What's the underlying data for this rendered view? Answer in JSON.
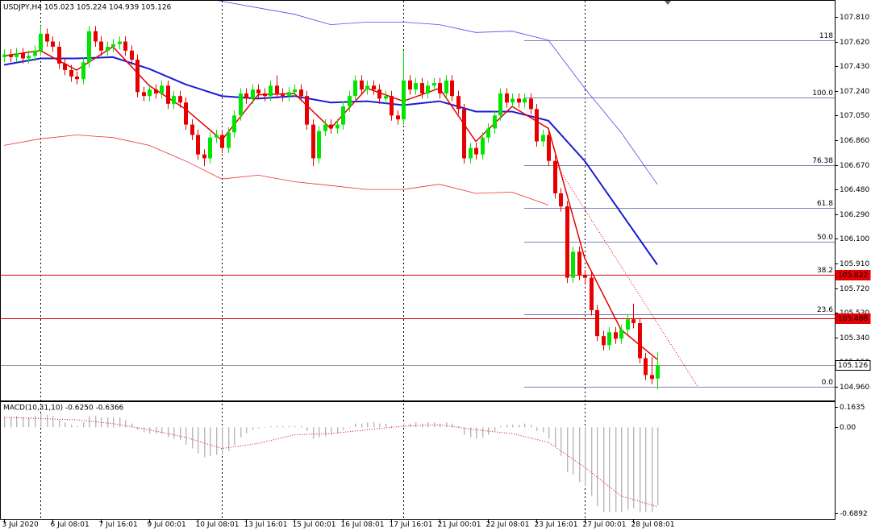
{
  "chart_data": {
    "type": "candlestick",
    "title": "USDJPY,H4  105.023 105.224 104.939 105.126",
    "up_color": "#00e600",
    "down_color": "#e60000",
    "candles": [
      [
        107.5,
        107.56,
        107.46,
        107.52
      ],
      [
        107.52,
        107.56,
        107.46,
        107.5
      ],
      [
        107.5,
        107.57,
        107.46,
        107.53
      ],
      [
        107.53,
        107.57,
        107.45,
        107.49
      ],
      [
        107.49,
        107.55,
        107.45,
        107.51
      ],
      [
        107.51,
        107.59,
        107.47,
        107.55
      ],
      [
        107.55,
        107.74,
        107.51,
        107.68
      ],
      [
        107.68,
        107.72,
        107.58,
        107.62
      ],
      [
        107.62,
        107.66,
        107.54,
        107.58
      ],
      [
        107.58,
        107.62,
        107.41,
        107.45
      ],
      [
        107.45,
        107.49,
        107.36,
        107.4
      ],
      [
        107.4,
        107.44,
        107.31,
        107.35
      ],
      [
        107.35,
        107.39,
        107.29,
        107.33
      ],
      [
        107.33,
        107.5,
        107.29,
        107.46
      ],
      [
        107.46,
        107.74,
        107.42,
        107.7
      ],
      [
        107.7,
        107.74,
        107.58,
        107.62
      ],
      [
        107.62,
        107.66,
        107.51,
        107.55
      ],
      [
        107.55,
        107.62,
        107.51,
        107.58
      ],
      [
        107.58,
        107.64,
        107.54,
        107.6
      ],
      [
        107.6,
        107.66,
        107.56,
        107.62
      ],
      [
        107.62,
        107.66,
        107.51,
        107.55
      ],
      [
        107.55,
        107.59,
        107.44,
        107.48
      ],
      [
        107.48,
        107.52,
        107.19,
        107.23
      ],
      [
        107.23,
        107.27,
        107.16,
        107.2
      ],
      [
        107.2,
        107.29,
        107.16,
        107.25
      ],
      [
        107.25,
        107.29,
        107.18,
        107.22
      ],
      [
        107.22,
        107.32,
        107.18,
        107.28
      ],
      [
        107.28,
        107.32,
        107.1,
        107.14
      ],
      [
        107.14,
        107.24,
        107.1,
        107.2
      ],
      [
        107.2,
        107.24,
        107.11,
        107.15
      ],
      [
        107.15,
        107.19,
        106.94,
        106.98
      ],
      [
        106.98,
        107.02,
        106.86,
        106.9
      ],
      [
        106.9,
        106.94,
        106.71,
        106.75
      ],
      [
        106.75,
        106.79,
        106.66,
        106.72
      ],
      [
        106.72,
        106.92,
        106.68,
        106.88
      ],
      [
        106.88,
        106.94,
        106.84,
        106.9
      ],
      [
        106.9,
        106.94,
        106.76,
        106.8
      ],
      [
        106.8,
        106.96,
        106.76,
        106.92
      ],
      [
        106.92,
        107.09,
        106.88,
        107.05
      ],
      [
        107.05,
        107.26,
        107.01,
        107.22
      ],
      [
        107.22,
        107.26,
        107.14,
        107.18
      ],
      [
        107.18,
        107.29,
        107.14,
        107.25
      ],
      [
        107.25,
        107.29,
        107.18,
        107.22
      ],
      [
        107.22,
        107.26,
        107.16,
        107.2
      ],
      [
        107.2,
        107.32,
        107.16,
        107.28
      ],
      [
        107.28,
        107.36,
        107.18,
        107.22
      ],
      [
        107.22,
        107.26,
        107.16,
        107.2
      ],
      [
        107.2,
        107.27,
        107.16,
        107.23
      ],
      [
        107.23,
        107.29,
        107.19,
        107.25
      ],
      [
        107.25,
        107.29,
        107.16,
        107.2
      ],
      [
        107.2,
        107.24,
        106.94,
        106.98
      ],
      [
        106.98,
        107.02,
        106.66,
        106.72
      ],
      [
        106.72,
        106.97,
        106.68,
        106.93
      ],
      [
        106.93,
        107.02,
        106.89,
        106.98
      ],
      [
        106.98,
        107.02,
        106.91,
        106.95
      ],
      [
        106.95,
        107.02,
        106.91,
        106.98
      ],
      [
        106.98,
        107.16,
        106.94,
        107.12
      ],
      [
        107.12,
        107.24,
        107.08,
        107.2
      ],
      [
        107.2,
        107.36,
        107.16,
        107.32
      ],
      [
        107.32,
        107.36,
        107.21,
        107.25
      ],
      [
        107.25,
        107.32,
        107.21,
        107.28
      ],
      [
        107.28,
        107.32,
        107.21,
        107.25
      ],
      [
        107.25,
        107.29,
        107.14,
        107.18
      ],
      [
        107.18,
        107.24,
        107.14,
        107.2
      ],
      [
        107.2,
        107.24,
        107.01,
        107.05
      ],
      [
        107.05,
        107.09,
        106.98,
        107.02
      ],
      [
        107.02,
        107.55,
        106.98,
        107.32
      ],
      [
        107.32,
        107.36,
        107.21,
        107.25
      ],
      [
        107.25,
        107.34,
        107.21,
        107.3
      ],
      [
        107.3,
        107.34,
        107.18,
        107.22
      ],
      [
        107.22,
        107.32,
        107.18,
        107.28
      ],
      [
        107.28,
        107.34,
        107.24,
        107.3
      ],
      [
        107.3,
        107.34,
        107.18,
        107.22
      ],
      [
        107.22,
        107.36,
        107.18,
        107.32
      ],
      [
        107.32,
        107.36,
        107.16,
        107.2
      ],
      [
        107.2,
        107.24,
        107.06,
        107.1
      ],
      [
        107.1,
        107.14,
        106.68,
        106.72
      ],
      [
        106.72,
        106.84,
        106.68,
        106.8
      ],
      [
        106.8,
        106.84,
        106.71,
        106.75
      ],
      [
        106.75,
        106.92,
        106.71,
        106.88
      ],
      [
        106.88,
        106.99,
        106.84,
        106.95
      ],
      [
        106.95,
        107.09,
        106.91,
        107.05
      ],
      [
        107.05,
        107.26,
        107.01,
        107.22
      ],
      [
        107.22,
        107.26,
        107.11,
        107.15
      ],
      [
        107.15,
        107.22,
        107.11,
        107.18
      ],
      [
        107.18,
        107.22,
        107.11,
        107.15
      ],
      [
        107.15,
        107.22,
        107.11,
        107.18
      ],
      [
        107.18,
        107.22,
        107.06,
        107.1
      ],
      [
        107.1,
        107.14,
        106.81,
        106.85
      ],
      [
        106.85,
        106.94,
        106.81,
        106.9
      ],
      [
        106.9,
        106.94,
        106.66,
        106.7
      ],
      [
        106.7,
        106.74,
        106.41,
        106.45
      ],
      [
        106.45,
        106.49,
        106.31,
        106.35
      ],
      [
        106.35,
        106.39,
        105.76,
        105.8
      ],
      [
        105.8,
        106.04,
        105.76,
        106.0
      ],
      [
        106.0,
        106.04,
        105.78,
        105.82
      ],
      [
        105.82,
        105.86,
        105.76,
        105.8
      ],
      [
        105.8,
        105.84,
        105.51,
        105.55
      ],
      [
        105.55,
        105.59,
        105.31,
        105.35
      ],
      [
        105.35,
        105.39,
        105.24,
        105.28
      ],
      [
        105.28,
        105.42,
        105.24,
        105.38
      ],
      [
        105.38,
        105.42,
        105.29,
        105.33
      ],
      [
        105.33,
        105.44,
        105.29,
        105.4
      ],
      [
        105.4,
        105.52,
        105.36,
        105.48
      ],
      [
        105.48,
        105.6,
        105.41,
        105.45
      ],
      [
        105.45,
        105.49,
        105.14,
        105.18
      ],
      [
        105.18,
        105.22,
        105.01,
        105.05
      ],
      [
        105.05,
        105.19,
        104.98,
        105.02
      ],
      [
        105.023,
        105.224,
        104.939,
        105.126
      ]
    ],
    "xlim": [
      -0.67,
      137.33
    ],
    "xticks": [
      {
        "value": 0,
        "label": "3 Jul 2020"
      },
      {
        "value": 8,
        "label": "6 Jul 08:01"
      },
      {
        "value": 16,
        "label": "7 Jul 16:01"
      },
      {
        "value": 24,
        "label": "9 Jul 00:01"
      },
      {
        "value": 32,
        "label": "10 Jul 08:01"
      },
      {
        "value": 40,
        "label": "13 Jul 16:01"
      },
      {
        "value": 48,
        "label": "15 Jul 00:01"
      },
      {
        "value": 56,
        "label": "16 Jul 08:01"
      },
      {
        "value": 64,
        "label": "17 Jul 16:01"
      },
      {
        "value": 72,
        "label": "21 Jul 00:01"
      },
      {
        "value": 80,
        "label": "22 Jul 08:01"
      },
      {
        "value": 88,
        "label": "23 Jul 16:01"
      },
      {
        "value": 96,
        "label": "27 Jul 00:01"
      },
      {
        "value": 104,
        "label": "28 Jul 08:01"
      }
    ],
    "ylim": [
      104.854,
      107.94
    ],
    "yticks": [
      {
        "value": 107.81,
        "label": "107.810"
      },
      {
        "value": 107.62,
        "label": "107.620"
      },
      {
        "value": 107.43,
        "label": "107.430"
      },
      {
        "value": 107.24,
        "label": "107.240"
      },
      {
        "value": 107.05,
        "label": "107.050"
      },
      {
        "value": 106.86,
        "label": "106.860"
      },
      {
        "value": 106.67,
        "label": "106.670"
      },
      {
        "value": 106.48,
        "label": "106.480"
      },
      {
        "value": 106.29,
        "label": "106.290"
      },
      {
        "value": 106.1,
        "label": "106.100"
      },
      {
        "value": 105.91,
        "label": "105.910"
      },
      {
        "value": 105.72,
        "label": "105.720"
      },
      {
        "value": 105.53,
        "label": "105.530"
      },
      {
        "value": 105.34,
        "label": "105.340"
      },
      {
        "value": 105.15,
        "label": "105.150"
      },
      {
        "value": 104.96,
        "label": "104.960"
      }
    ],
    "separators": [
      6,
      36,
      66,
      96
    ],
    "series": [
      {
        "color": "#1a1ad6",
        "width": 2,
        "x": [
          0,
          6,
          12,
          18,
          24,
          30,
          36,
          42,
          48,
          54,
          60,
          66,
          72,
          78,
          84,
          90,
          96,
          102,
          108
        ],
        "values": [
          107.44,
          107.49,
          107.49,
          107.5,
          107.41,
          107.29,
          107.2,
          107.18,
          107.2,
          107.15,
          107.16,
          107.13,
          107.16,
          107.08,
          107.08,
          107.01,
          106.7,
          106.3,
          105.9
        ]
      },
      {
        "color": "#e60000",
        "width": 1.5,
        "x": [
          0,
          6,
          12,
          18,
          24,
          30,
          36,
          42,
          48,
          54,
          60,
          66,
          72,
          78,
          84,
          90,
          96,
          102,
          108
        ],
        "values": [
          107.51,
          107.55,
          107.4,
          107.58,
          107.28,
          107.1,
          106.86,
          107.21,
          107.22,
          106.95,
          107.26,
          107.16,
          107.26,
          106.85,
          107.12,
          106.95,
          105.95,
          105.4,
          105.17
        ]
      },
      {
        "color": "#4a4af0",
        "width": 0.8,
        "x": [
          30,
          36,
          42,
          48,
          54,
          60,
          66,
          72,
          78,
          84,
          90,
          96,
          102,
          108
        ],
        "values": [
          107.99,
          107.93,
          107.88,
          107.83,
          107.75,
          107.77,
          107.77,
          107.75,
          107.69,
          107.7,
          107.63,
          107.26,
          106.92,
          106.52
        ]
      },
      {
        "color": "#f03030",
        "width": 0.8,
        "x": [
          0,
          6,
          12,
          18,
          24,
          30,
          36,
          42,
          48,
          54,
          60,
          66,
          72,
          78,
          84,
          90
        ],
        "values": [
          106.82,
          106.87,
          106.9,
          106.88,
          106.82,
          106.7,
          106.56,
          106.59,
          106.54,
          106.51,
          106.48,
          106.48,
          106.52,
          106.45,
          106.46,
          106.36
        ]
      }
    ],
    "levels": [
      {
        "value": 105.822,
        "color": "#e60000"
      },
      {
        "value": 105.488,
        "color": "#e60000"
      },
      {
        "value": 105.126,
        "color": "#909090"
      }
    ],
    "fibo": {
      "x": 86,
      "color": "#8080b0",
      "levels": [
        {
          "value": 107.63,
          "label": "118"
        },
        {
          "value": 107.19,
          "label": "100.0"
        },
        {
          "value": 106.67,
          "label": "76.38"
        },
        {
          "value": 106.34,
          "label": "61.8"
        },
        {
          "value": 106.08,
          "label": "50.0"
        },
        {
          "value": 105.82,
          "label": "38.2"
        },
        {
          "value": 105.52,
          "label": "23.6"
        },
        {
          "value": 104.96,
          "label": "0.0"
        }
      ]
    },
    "trendline": {
      "color": "#e60000",
      "x": [
        91.3,
        114.7
      ],
      "values": [
        106.67,
        104.96
      ]
    },
    "macd": {
      "label": "MACD(10,31,10) -0.6250 -0.6366",
      "ylim": [
        -0.6892,
        0.1635
      ],
      "yticks": [
        0.1635,
        {
          "value": 0,
          "label": "0.00"
        },
        -0.6892
      ],
      "histogram_color": "#b8b8b8",
      "histogram": [
        0.08,
        0.08,
        0.09,
        0.08,
        0.08,
        0.09,
        0.11,
        0.1,
        0.09,
        0.06,
        0.04,
        0.02,
        0.01,
        0.04,
        0.09,
        0.09,
        0.08,
        0.08,
        0.08,
        0.08,
        0.06,
        0.03,
        -0.02,
        -0.04,
        -0.05,
        -0.05,
        -0.05,
        -0.08,
        -0.09,
        -0.1,
        -0.14,
        -0.17,
        -0.21,
        -0.24,
        -0.23,
        -0.22,
        -0.22,
        -0.19,
        -0.14,
        -0.08,
        -0.05,
        -0.02,
        -0.01,
        0.0,
        0.01,
        0.01,
        0.01,
        0.01,
        0.01,
        0.01,
        -0.03,
        -0.09,
        -0.08,
        -0.07,
        -0.06,
        -0.05,
        -0.02,
        0.0,
        0.03,
        0.03,
        0.04,
        0.04,
        0.03,
        0.03,
        0.01,
        0.0,
        0.03,
        0.03,
        0.04,
        0.03,
        0.04,
        0.04,
        0.03,
        0.04,
        0.03,
        0.01,
        -0.06,
        -0.08,
        -0.09,
        -0.08,
        -0.06,
        -0.03,
        0.01,
        0.02,
        0.02,
        0.02,
        0.03,
        0.02,
        -0.03,
        -0.04,
        -0.09,
        -0.16,
        -0.23,
        -0.36,
        -0.38,
        -0.44,
        -0.47,
        -0.55,
        -0.63,
        -0.68,
        -0.68,
        -0.68,
        -0.68,
        -0.66,
        -0.65,
        -0.68,
        -0.68,
        -0.68,
        -0.625
      ],
      "signal": {
        "color": "#e60000",
        "x": [
          0,
          6,
          12,
          18,
          24,
          30,
          36,
          42,
          48,
          54,
          60,
          66,
          72,
          78,
          84,
          90,
          96,
          102,
          108
        ],
        "values": [
          0.08,
          0.07,
          0.06,
          0.03,
          -0.02,
          -0.08,
          -0.17,
          -0.13,
          -0.06,
          -0.05,
          -0.02,
          0.01,
          0.02,
          -0.02,
          -0.05,
          -0.12,
          -0.32,
          -0.55,
          -0.6366
        ]
      }
    }
  }
}
